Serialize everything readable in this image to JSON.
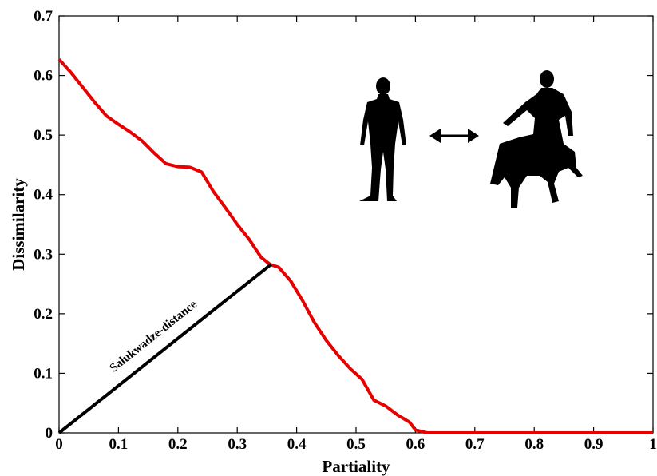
{
  "chart_data": {
    "type": "line",
    "x_label": "Partiality",
    "y_label": "Dissimilarity",
    "x": [
      0,
      0.02,
      0.04,
      0.06,
      0.08,
      0.1,
      0.12,
      0.14,
      0.16,
      0.18,
      0.2,
      0.22,
      0.24,
      0.26,
      0.28,
      0.3,
      0.32,
      0.34,
      0.355,
      0.37,
      0.39,
      0.41,
      0.43,
      0.45,
      0.47,
      0.49,
      0.51,
      0.53,
      0.55,
      0.57,
      0.59,
      0.6,
      0.62,
      0.7,
      0.8,
      0.9,
      1
    ],
    "series": [
      {
        "color": "#e60000",
        "values": [
          0.627,
          0.605,
          0.58,
          0.555,
          0.532,
          0.518,
          0.505,
          0.49,
          0.47,
          0.452,
          0.447,
          0.446,
          0.438,
          0.405,
          0.378,
          0.35,
          0.325,
          0.295,
          0.283,
          0.278,
          0.255,
          0.222,
          0.185,
          0.155,
          0.13,
          0.108,
          0.09,
          0.055,
          0.045,
          0.03,
          0.018,
          0.005,
          0,
          0,
          0,
          0,
          0
        ]
      }
    ],
    "annotation": {
      "text": "Salukwadze-distance",
      "color": "#000000",
      "x": [
        0,
        0.357
      ],
      "y": [
        0,
        0.283
      ]
    },
    "xlim": [
      0,
      1
    ],
    "ylim": [
      0,
      0.7
    ],
    "xticks": [
      0,
      0.1,
      0.2,
      0.3,
      0.4,
      0.5,
      0.6,
      0.7,
      0.8,
      0.9,
      1
    ],
    "yticks": [
      0,
      0.1,
      0.2,
      0.3,
      0.4,
      0.5,
      0.6,
      0.7
    ]
  }
}
